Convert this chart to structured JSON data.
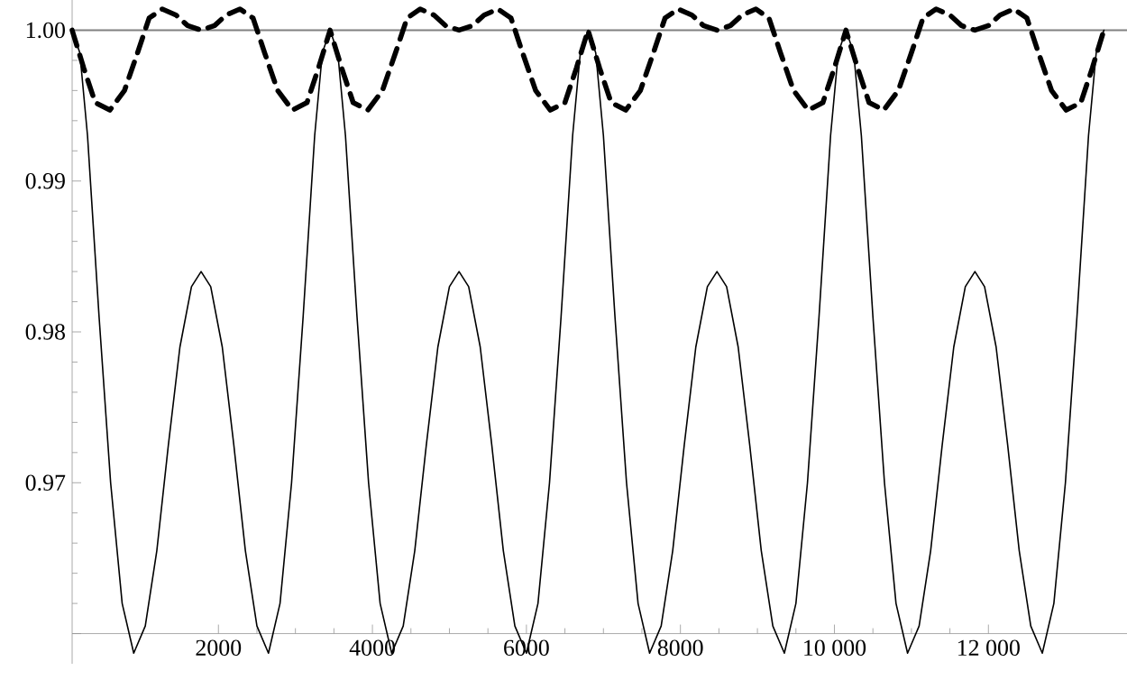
{
  "chart_data": {
    "type": "line",
    "xlim": [
      100,
      13800
    ],
    "ylim": [
      0.958,
      1.002
    ],
    "xticks": [
      2000,
      4000,
      6000,
      8000,
      {
        "value": 10000,
        "label": "10 000"
      },
      {
        "value": 12000,
        "label": "12 000"
      }
    ],
    "yticks": [
      {
        "value": 0.96,
        "label": null
      },
      0.97,
      0.98,
      0.99,
      {
        "value": 1.0,
        "label": "1.00"
      }
    ],
    "grid": false,
    "marker": "none",
    "ref_lines": [
      {
        "axis": "y",
        "value": 1.0,
        "color": "#808080"
      }
    ],
    "series": [
      {
        "color": "#000000",
        "line_style": "solid",
        "x": [
          100,
          200,
          300,
          450,
          600,
          750,
          900,
          1050,
          1200,
          1350,
          1500,
          1650,
          1775,
          1900,
          2050,
          2200,
          2350,
          2500,
          2650,
          2800,
          2950,
          3100,
          3250,
          3350,
          3450,
          3550,
          3650,
          3800,
          3950,
          4100,
          4250,
          4400,
          4550,
          4700,
          4850,
          5000,
          5125,
          5250,
          5400,
          5550,
          5700,
          5850,
          6000,
          6150,
          6300,
          6450,
          6600,
          6700,
          6800,
          6900,
          7000,
          7150,
          7300,
          7450,
          7600,
          7750,
          7900,
          8050,
          8200,
          8350,
          8475,
          8600,
          8750,
          8900,
          9050,
          9200,
          9350,
          9500,
          9650,
          9800,
          9950,
          10050,
          10150,
          10250,
          10350,
          10500,
          10650,
          10800,
          10950,
          11100,
          11250,
          11400,
          11550,
          11700,
          11825,
          11950,
          12100,
          12250,
          12400,
          12550,
          12700,
          12850,
          13000,
          13150,
          13300,
          13400,
          13500
        ],
        "values": [
          1.0,
          0.9985,
          0.993,
          0.981,
          0.97,
          0.962,
          0.9587,
          0.9605,
          0.9655,
          0.9725,
          0.979,
          0.983,
          0.984,
          0.983,
          0.979,
          0.9725,
          0.9655,
          0.9605,
          0.9587,
          0.962,
          0.97,
          0.981,
          0.993,
          0.9985,
          1.0,
          0.9985,
          0.993,
          0.981,
          0.97,
          0.962,
          0.9587,
          0.9605,
          0.9655,
          0.9725,
          0.979,
          0.983,
          0.984,
          0.983,
          0.979,
          0.9725,
          0.9655,
          0.9605,
          0.9587,
          0.962,
          0.97,
          0.981,
          0.993,
          0.9985,
          1.0,
          0.9985,
          0.993,
          0.981,
          0.97,
          0.962,
          0.9587,
          0.9605,
          0.9655,
          0.9725,
          0.979,
          0.983,
          0.984,
          0.983,
          0.979,
          0.9725,
          0.9655,
          0.9605,
          0.9587,
          0.962,
          0.97,
          0.981,
          0.993,
          0.9985,
          1.0,
          0.9985,
          0.993,
          0.981,
          0.97,
          0.962,
          0.9587,
          0.9605,
          0.9655,
          0.9725,
          0.979,
          0.983,
          0.984,
          0.983,
          0.979,
          0.9725,
          0.9655,
          0.9605,
          0.9587,
          0.962,
          0.97,
          0.981,
          0.993,
          0.9985,
          1.0
        ]
      },
      {
        "color": "#000000",
        "line_style": "dashed",
        "x": [
          100,
          250,
          400,
          590,
          780,
          950,
          1100,
          1270,
          1450,
          1600,
          1775,
          1950,
          2100,
          2280,
          2450,
          2600,
          2770,
          2960,
          3150,
          3300,
          3450,
          3600,
          3750,
          3940,
          4130,
          4300,
          4450,
          4620,
          4800,
          4950,
          5125,
          5300,
          5450,
          5630,
          5800,
          5950,
          6120,
          6310,
          6500,
          6650,
          6800,
          6950,
          7100,
          7290,
          7480,
          7650,
          7800,
          7970,
          8150,
          8300,
          8475,
          8650,
          8800,
          8980,
          9150,
          9300,
          9470,
          9660,
          9850,
          10000,
          10150,
          10300,
          10450,
          10640,
          10830,
          11000,
          11150,
          11320,
          11500,
          11650,
          11825,
          12000,
          12150,
          12330,
          12500,
          12650,
          12820,
          13010,
          13200,
          13350,
          13500
        ],
        "values": [
          1.0,
          0.9975,
          0.9952,
          0.9947,
          0.996,
          0.9985,
          1.0008,
          1.0014,
          1.001,
          1.0003,
          1.0,
          1.0003,
          1.001,
          1.0014,
          1.0008,
          0.9985,
          0.996,
          0.9947,
          0.9952,
          0.9975,
          1.0,
          0.9975,
          0.9952,
          0.9947,
          0.996,
          0.9985,
          1.0008,
          1.0014,
          1.001,
          1.0003,
          1.0,
          1.0003,
          1.001,
          1.0014,
          1.0008,
          0.9985,
          0.996,
          0.9947,
          0.9952,
          0.9975,
          1.0,
          0.9975,
          0.9952,
          0.9947,
          0.996,
          0.9985,
          1.0008,
          1.0014,
          1.001,
          1.0003,
          1.0,
          1.0003,
          1.001,
          1.0014,
          1.0008,
          0.9985,
          0.996,
          0.9947,
          0.9952,
          0.9975,
          1.0,
          0.9975,
          0.9952,
          0.9947,
          0.996,
          0.9985,
          1.0008,
          1.0014,
          1.001,
          1.0003,
          1.0,
          1.0003,
          1.001,
          1.0014,
          1.0008,
          0.9985,
          0.996,
          0.9947,
          0.9952,
          0.9975,
          1.0
        ]
      }
    ]
  }
}
